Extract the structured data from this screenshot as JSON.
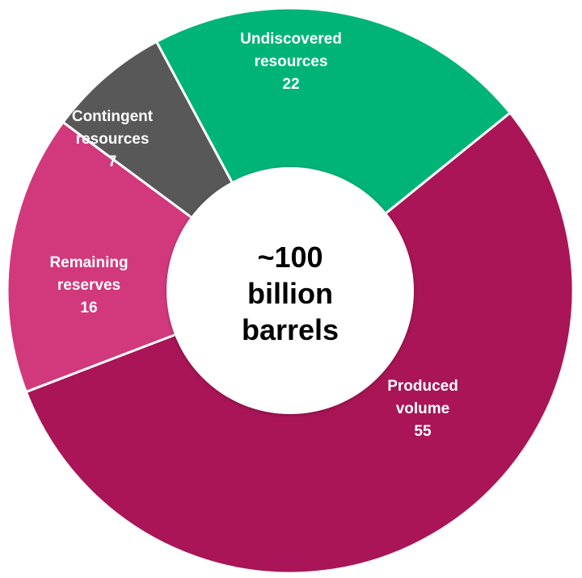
{
  "chart_data": {
    "type": "pie",
    "center_text": [
      "~100",
      "billion",
      "barrels"
    ],
    "slices": [
      {
        "label_lines": [
          "Produced",
          "volume"
        ],
        "value": 55,
        "value_text": "55",
        "color": "#A91556"
      },
      {
        "label_lines": [
          "Remaining",
          "reserves"
        ],
        "value": 16,
        "value_text": "16",
        "color": "#D2397C"
      },
      {
        "label_lines": [
          "Contingent",
          "resources"
        ],
        "value": 7,
        "value_text": "7",
        "color": "#585858"
      },
      {
        "label_lines": [
          "Undiscovered",
          "resources"
        ],
        "value": 22,
        "value_text": "22",
        "color": "#00B478"
      }
    ],
    "separator_color": "#ffffff",
    "center_fill": "#ffffff",
    "center_text_color": "#000000",
    "label_text_color": "#ffffff"
  }
}
